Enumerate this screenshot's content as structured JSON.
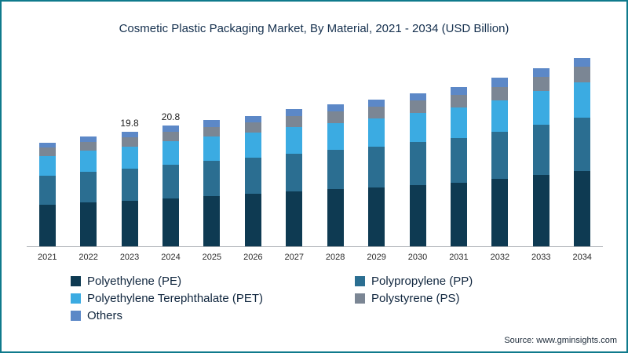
{
  "title": "Cosmetic Plastic Packaging Market, By Material, 2021 - 2034 (USD Billion)",
  "source": "Source: www.gminsights.com",
  "colors": {
    "border": "#0f7a8c",
    "axis": "#a9adb3"
  },
  "chart_data": {
    "type": "bar",
    "stacked": true,
    "title": "Cosmetic Plastic Packaging Market, By Material, 2021 - 2034 (USD Billion)",
    "xlabel": "",
    "ylabel": "",
    "grid": false,
    "legend_position": "bottom-left",
    "categories": [
      "2021",
      "2022",
      "2023",
      "2024",
      "2025",
      "2026",
      "2027",
      "2028",
      "2029",
      "2030",
      "2031",
      "2032",
      "2033",
      "2034"
    ],
    "series": [
      {
        "name": "Polyethylene (PE)",
        "color": "#0e3a52",
        "values": [
          7.2,
          7.6,
          7.9,
          8.3,
          8.7,
          9.0,
          9.4,
          9.8,
          10.1,
          10.6,
          11.0,
          11.6,
          12.3,
          13.0
        ]
      },
      {
        "name": "Polypropylene (PP)",
        "color": "#2b6e91",
        "values": [
          5.0,
          5.3,
          5.5,
          5.8,
          6.1,
          6.3,
          6.6,
          6.8,
          7.1,
          7.4,
          7.7,
          8.1,
          8.6,
          9.1
        ]
      },
      {
        "name": "Polyethylene Terephthalate (PET)",
        "color": "#3babe2",
        "values": [
          3.4,
          3.6,
          3.8,
          4.0,
          4.1,
          4.3,
          4.5,
          4.6,
          4.8,
          5.0,
          5.2,
          5.5,
          5.8,
          6.2
        ]
      },
      {
        "name": "Polystyrene (PS)",
        "color": "#7b8694",
        "values": [
          1.4,
          1.5,
          1.6,
          1.7,
          1.7,
          1.8,
          1.9,
          2.0,
          2.0,
          2.1,
          2.2,
          2.3,
          2.5,
          2.6
        ]
      },
      {
        "name": "Others",
        "color": "#5c88c7",
        "values": [
          0.9,
          0.9,
          1.0,
          1.0,
          1.1,
          1.1,
          1.2,
          1.2,
          1.3,
          1.3,
          1.4,
          1.5,
          1.5,
          1.6
        ]
      }
    ],
    "totals": [
      17.9,
      18.9,
      19.8,
      20.8,
      21.7,
      22.5,
      23.6,
      24.4,
      25.3,
      26.4,
      27.5,
      29.0,
      30.7,
      32.5
    ],
    "annotations": [
      {
        "category": "2023",
        "label": "19.8"
      },
      {
        "category": "2024",
        "label": "20.8"
      }
    ]
  }
}
